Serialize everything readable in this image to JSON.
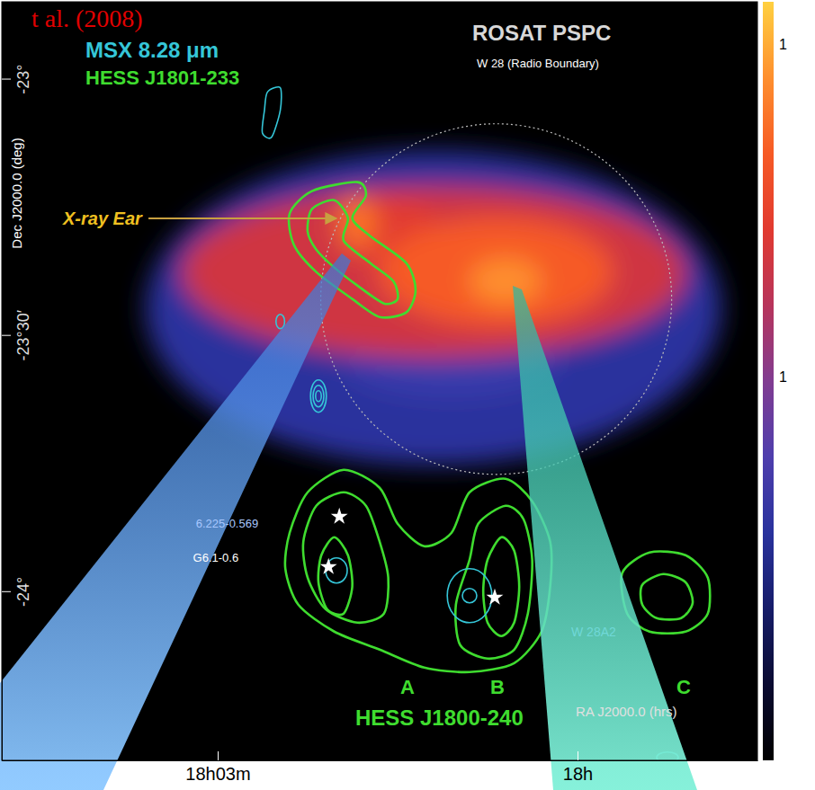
{
  "chart_data": {
    "type": "sky_map",
    "citation": "t al. (2008)",
    "xlabel": "RA J2000.0 (hrs)",
    "ylabel": "Dec J2000.0 (deg)",
    "xlim": [
      18.08,
      17.975
    ],
    "ylim": [
      -24.33,
      -22.85
    ],
    "xticks": [
      {
        "value": 18.05,
        "label": "18h03m"
      },
      {
        "value": 18,
        "label": "18h"
      }
    ],
    "yticks": [
      {
        "value": -23,
        "label": "-23°"
      },
      {
        "value": -23.5,
        "label": "-23°30′"
      },
      {
        "value": -24,
        "label": "-24°"
      }
    ],
    "image": {
      "name": "ROSAT PSPC",
      "blobs": [
        {
          "ra": 18.02,
          "dec": -23.4474,
          "rx": 0.04,
          "ry": 0.307,
          "level": 0.3
        },
        {
          "ra": 18.0175,
          "dec": -23.5526,
          "rx": 0.015,
          "ry": 0.0702,
          "level": 0.35
        },
        {
          "ra": 17.9925,
          "dec": -23.5,
          "rx": 0.0075,
          "ry": 0.0526,
          "level": 0.3
        },
        {
          "ra": 18.02,
          "dec": -23.3772,
          "rx": 0.035,
          "ry": 0.1666,
          "level": 0.65
        },
        {
          "ra": 18.0263,
          "dec": -23.2983,
          "rx": 0.006875,
          "ry": 0.0702,
          "level": 0.7
        },
        {
          "ra": 18.0113,
          "dec": -23.3772,
          "rx": 0.01625,
          "ry": 0.1052,
          "level": 0.8
        },
        {
          "ra": 18.0306,
          "dec": -23.2807,
          "rx": 0.00275,
          "ry": 0.0526,
          "level": 0.85
        },
        {
          "ra": 18.01,
          "dec": -23.3948,
          "rx": 0.005,
          "ry": 0.0439,
          "level": 0.9
        }
      ]
    },
    "radio_boundary": {
      "label": "W 28 (Radio Boundary)",
      "ra": 18.0113,
      "dec": -23.43,
      "radius": 0.342
    },
    "series": [
      {
        "name": "HESS J1801-233",
        "color": "#3fdc2f",
        "contours": [
          [
            [
              18.0369,
              -23.2194
            ],
            [
              18.0306,
              -23.2018
            ],
            [
              18.0294,
              -23.2281
            ],
            [
              18.0313,
              -23.272
            ],
            [
              18.0288,
              -23.3071
            ],
            [
              18.0238,
              -23.3597
            ],
            [
              18.0225,
              -23.4123
            ],
            [
              18.0238,
              -23.4561
            ],
            [
              18.0275,
              -23.4649
            ],
            [
              18.0313,
              -23.4298
            ],
            [
              18.0363,
              -23.3772
            ],
            [
              18.0394,
              -23.3246
            ],
            [
              18.04,
              -23.2632
            ]
          ],
          [
            [
              18.0369,
              -23.2544
            ],
            [
              18.0338,
              -23.2369
            ],
            [
              18.0319,
              -23.272
            ],
            [
              18.0325,
              -23.3158
            ],
            [
              18.0288,
              -23.3597
            ],
            [
              18.0256,
              -23.3948
            ],
            [
              18.025,
              -23.4298
            ],
            [
              18.0269,
              -23.4386
            ],
            [
              18.0306,
              -23.4035
            ],
            [
              18.0338,
              -23.3684
            ],
            [
              18.0363,
              -23.3334
            ],
            [
              18.0375,
              -23.2983
            ]
          ]
        ]
      },
      {
        "name": "HESS J1800-240",
        "color": "#3fdc2f",
        "contours": [
          [
            [
              18.04,
              -23.8859
            ],
            [
              18.0375,
              -23.807
            ],
            [
              18.0325,
              -23.7631
            ],
            [
              18.0275,
              -23.7982
            ],
            [
              18.025,
              -23.8683
            ],
            [
              18.0213,
              -23.9122
            ],
            [
              18.0175,
              -23.8859
            ],
            [
              18.015,
              -23.807
            ],
            [
              18.01,
              -23.7806
            ],
            [
              18.0063,
              -23.8245
            ],
            [
              18.0038,
              -23.9034
            ],
            [
              18.0038,
              -23.9911
            ],
            [
              18.005,
              -24.0788
            ],
            [
              18.0088,
              -24.1402
            ],
            [
              18.015,
              -24.1578
            ],
            [
              18.0213,
              -24.149
            ],
            [
              18.0275,
              -24.1139
            ],
            [
              18.0338,
              -24.0788
            ],
            [
              18.0388,
              -24.0262
            ],
            [
              18.0406,
              -23.956
            ]
          ],
          [
            [
              18.0381,
              -23.9034
            ],
            [
              18.0363,
              -23.8333
            ],
            [
              18.0325,
              -23.807
            ],
            [
              18.0294,
              -23.8333
            ],
            [
              18.0275,
              -23.9034
            ],
            [
              18.0263,
              -23.9736
            ],
            [
              18.0269,
              -24.0437
            ],
            [
              18.0306,
              -24.0613
            ],
            [
              18.035,
              -24.035
            ],
            [
              18.0375,
              -23.9736
            ]
          ],
          [
            [
              18.0356,
              -23.9297
            ],
            [
              18.0338,
              -23.8947
            ],
            [
              18.0319,
              -23.9297
            ],
            [
              18.0313,
              -23.9911
            ],
            [
              18.0325,
              -24.0437
            ],
            [
              18.0348,
              -24.035
            ],
            [
              18.036,
              -23.9824
            ]
          ],
          [
            [
              18.015,
              -23.9385
            ],
            [
              18.0138,
              -23.8683
            ],
            [
              18.01,
              -23.8333
            ],
            [
              18.0075,
              -23.8596
            ],
            [
              18.0063,
              -23.9385
            ],
            [
              18.0069,
              -24.0437
            ],
            [
              18.0088,
              -24.1139
            ],
            [
              18.0125,
              -24.1314
            ],
            [
              18.0163,
              -24.1051
            ],
            [
              18.0169,
              -24.0262
            ]
          ],
          [
            [
              18.0125,
              -23.9385
            ],
            [
              18.0106,
              -23.8947
            ],
            [
              18.0088,
              -23.921
            ],
            [
              18.0081,
              -23.9911
            ],
            [
              18.0088,
              -24.0613
            ],
            [
              18.0106,
              -24.0876
            ],
            [
              18.0125,
              -24.0613
            ],
            [
              18.0131,
              -24
            ]
          ],
          [
            [
              17.9938,
              -23.9648
            ],
            [
              17.99,
              -23.9245
            ],
            [
              17.985,
              -23.9297
            ],
            [
              17.9819,
              -23.9736
            ],
            [
              17.9819,
              -24.0437
            ],
            [
              17.985,
              -24.0788
            ],
            [
              17.99,
              -24.0788
            ],
            [
              17.9931,
              -24.0437
            ]
          ],
          [
            [
              17.991,
              -23.9876
            ],
            [
              17.9881,
              -23.9666
            ],
            [
              17.985,
              -23.9824
            ],
            [
              17.984,
              -24.0227
            ],
            [
              17.9856,
              -24.0525
            ],
            [
              17.989,
              -24.0525
            ],
            [
              17.991,
              -24.0262
            ]
          ]
        ]
      },
      {
        "name": "MSX 8.28 μm",
        "color": "#35c6d8",
        "contours": [
          [
            [
              18.0431,
              -23.0264
            ],
            [
              18.0413,
              -23.0177
            ],
            [
              18.0413,
              -23.0615
            ],
            [
              18.0425,
              -23.1141
            ],
            [
              18.0438,
              -23.1053
            ],
            [
              18.0435,
              -23.0615
            ]
          ]
        ],
        "ellipses": [
          {
            "ra": 18.0413,
            "dec": -23.4737,
            "rx": 0.0006,
            "ry": 0.014
          },
          {
            "ra": 18.036,
            "dec": -23.6193,
            "rx": 0.0011,
            "ry": 0.0316
          },
          {
            "ra": 18.036,
            "dec": -23.6193,
            "rx": 0.00075,
            "ry": 0.021
          },
          {
            "ra": 18.036,
            "dec": -23.6193,
            "rx": 0.0004,
            "ry": 0.0105
          },
          {
            "ra": 18.0335,
            "dec": -23.9595,
            "rx": 0.0015,
            "ry": 0.0246
          },
          {
            "ra": 18.015,
            "dec": -24.0087,
            "rx": 0.0031,
            "ry": 0.0526
          },
          {
            "ra": 18.015,
            "dec": -24.0087,
            "rx": 0.001,
            "ry": 0.014
          },
          {
            "ra": 17.9875,
            "dec": -24.3244,
            "rx": 0.0015,
            "ry": 0.0105
          }
        ]
      }
    ],
    "stars": [
      {
        "ra": 18.0331,
        "dec": -23.8543,
        "label": "6.225-0.569"
      },
      {
        "ra": 18.0346,
        "dec": -23.9525,
        "label": "G6.1-0.6"
      },
      {
        "ra": 18.0115,
        "dec": -24.0122
      }
    ],
    "annotations": {
      "ear": "X-ray Ear",
      "w28a2": "W 28A2",
      "a": "A",
      "b": "B",
      "c": "C"
    },
    "colorbar_labels": [
      "1",
      "1"
    ]
  }
}
